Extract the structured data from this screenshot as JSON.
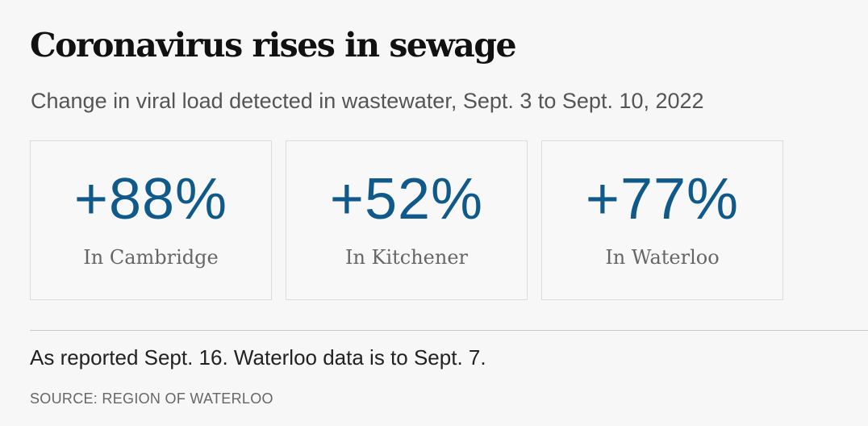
{
  "chart_data": {
    "type": "table",
    "title": "Coronavirus rises in sewage",
    "subtitle": "Change in viral load detected in wastewater, Sept. 3 to Sept. 10, 2022",
    "categories": [
      "In Cambridge",
      "In Kitchener",
      "In Waterloo"
    ],
    "values": [
      88,
      52,
      77
    ],
    "display_values": [
      "+88%",
      "+52%",
      "+77%"
    ],
    "accent_color": "#0f5a8a"
  },
  "footer": {
    "note": "As reported Sept. 16. Waterloo data is to Sept. 7.",
    "source": "SOURCE: REGION OF WATERLOO"
  }
}
